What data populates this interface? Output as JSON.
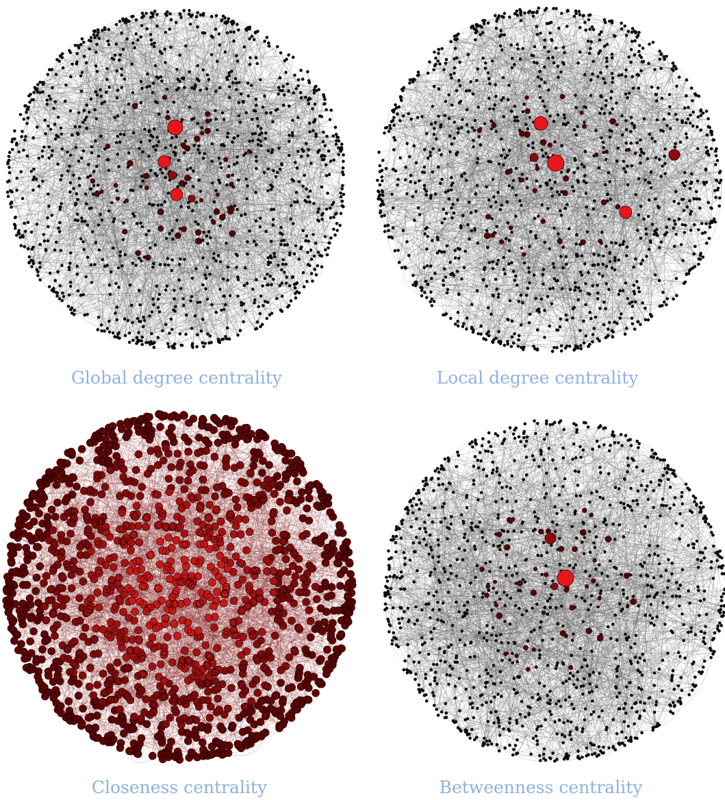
{
  "captions": [
    "Global degree centrality",
    "Local degree centrality",
    "Closeness centrality",
    "Betweenness centrality"
  ]
}
